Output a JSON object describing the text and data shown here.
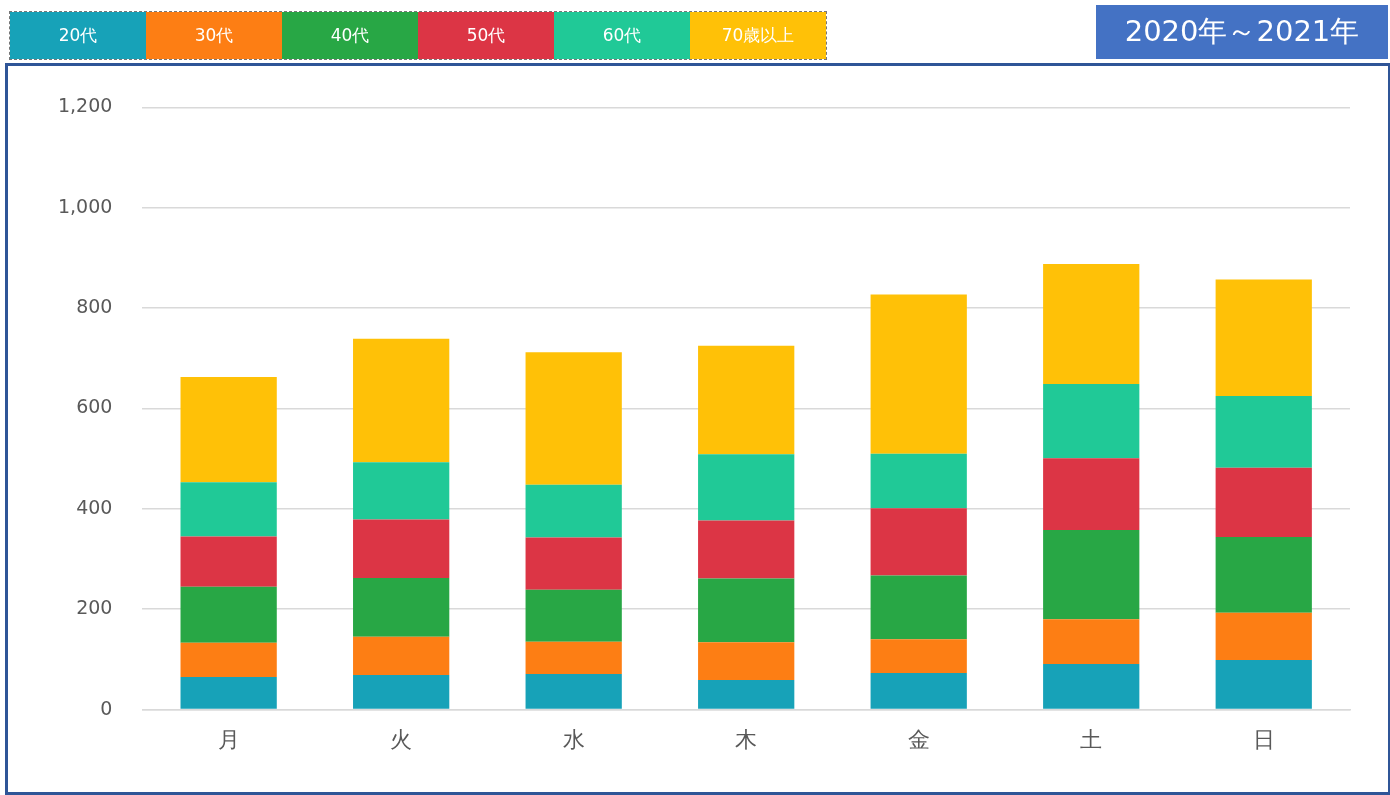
{
  "chart_data": {
    "type": "bar",
    "title": "2020年～2021年",
    "stacked": true,
    "legend": "top left",
    "grid": "y",
    "categories": [
      "月",
      "火",
      "水",
      "木",
      "金",
      "土",
      "日"
    ],
    "ylim": [
      0,
      1200
    ],
    "yticks": [
      {
        "value": 0,
        "label": "0"
      },
      {
        "value": 200,
        "label": "200"
      },
      {
        "value": 400,
        "label": "400"
      },
      {
        "value": 600,
        "label": "600"
      },
      {
        "value": 800,
        "label": "800"
      },
      {
        "value": 1000,
        "label": "1,000"
      },
      {
        "value": 1200,
        "label": "1,200"
      }
    ],
    "series": [
      {
        "name": "20代",
        "color": "#17a2b8",
        "values": [
          65,
          69,
          71,
          59,
          73,
          91,
          99
        ]
      },
      {
        "name": "30代",
        "color": "#fd7e14",
        "values": [
          68,
          76,
          64,
          75,
          67,
          89,
          94
        ]
      },
      {
        "name": "40代",
        "color": "#28a745",
        "values": [
          112,
          117,
          104,
          127,
          127,
          178,
          151
        ]
      },
      {
        "name": "50代",
        "color": "#dc3545",
        "values": [
          100,
          117,
          104,
          116,
          134,
          143,
          138
        ]
      },
      {
        "name": "60代",
        "color": "#20c997",
        "values": [
          108,
          114,
          105,
          132,
          109,
          148,
          143
        ]
      },
      {
        "name": "70歳以上",
        "color": "#ffc107",
        "values": [
          210,
          246,
          264,
          216,
          317,
          239,
          232
        ]
      }
    ]
  }
}
